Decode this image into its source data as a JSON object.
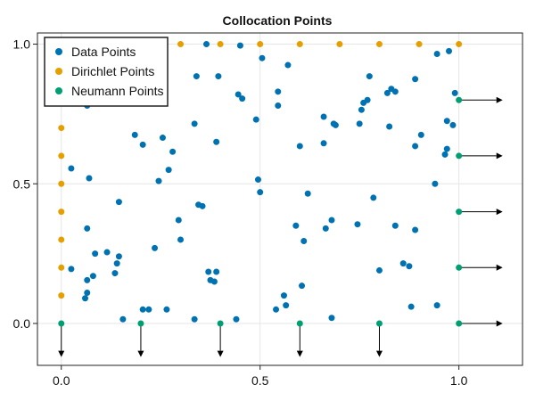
{
  "chart_data": {
    "type": "scatter",
    "title": "Collocation Points",
    "xlabel": "",
    "ylabel": "",
    "xlim": [
      -0.06,
      1.16
    ],
    "ylim": [
      -0.15,
      1.04
    ],
    "xticks": [
      0.0,
      0.5,
      1.0
    ],
    "xtick_labels": [
      "0.0",
      "0.5",
      "1.0"
    ],
    "yticks": [
      0.0,
      0.5,
      1.0
    ],
    "ytick_labels": [
      "0.0",
      "0.5",
      "1.0"
    ],
    "grid": true,
    "legend_position": "top-left",
    "series": [
      {
        "name": "Data Points",
        "color": "#0072b2",
        "points": [
          [
            0.06,
            0.09
          ],
          [
            0.065,
            0.11
          ],
          [
            0.065,
            0.155
          ],
          [
            0.065,
            0.34
          ],
          [
            0.07,
            0.52
          ],
          [
            0.025,
            0.555
          ],
          [
            0.025,
            0.195
          ],
          [
            0.08,
            0.17
          ],
          [
            0.085,
            0.25
          ],
          [
            0.065,
            0.78
          ],
          [
            0.115,
            0.255
          ],
          [
            0.135,
            0.18
          ],
          [
            0.14,
            0.215
          ],
          [
            0.145,
            0.24
          ],
          [
            0.145,
            0.435
          ],
          [
            0.155,
            0.015
          ],
          [
            0.185,
            0.675
          ],
          [
            0.205,
            0.64
          ],
          [
            0.205,
            0.05
          ],
          [
            0.22,
            0.05
          ],
          [
            0.235,
            0.27
          ],
          [
            0.245,
            0.51
          ],
          [
            0.255,
            0.665
          ],
          [
            0.265,
            0.05
          ],
          [
            0.27,
            0.55
          ],
          [
            0.28,
            0.615
          ],
          [
            0.295,
            0.37
          ],
          [
            0.3,
            0.3
          ],
          [
            0.335,
            0.015
          ],
          [
            0.335,
            0.715
          ],
          [
            0.34,
            0.885
          ],
          [
            0.345,
            0.425
          ],
          [
            0.355,
            0.42
          ],
          [
            0.365,
            1.0
          ],
          [
            0.37,
            0.185
          ],
          [
            0.375,
            0.155
          ],
          [
            0.385,
            0.15
          ],
          [
            0.39,
            0.185
          ],
          [
            0.39,
            0.65
          ],
          [
            0.395,
            0.885
          ],
          [
            0.44,
            0.015
          ],
          [
            0.445,
            0.82
          ],
          [
            0.45,
            0.995
          ],
          [
            0.455,
            0.805
          ],
          [
            0.49,
            0.73
          ],
          [
            0.495,
            0.515
          ],
          [
            0.5,
            0.47
          ],
          [
            0.505,
            0.95
          ],
          [
            0.54,
            0.05
          ],
          [
            0.545,
            0.83
          ],
          [
            0.545,
            0.78
          ],
          [
            0.56,
            0.1
          ],
          [
            0.565,
            0.065
          ],
          [
            0.57,
            0.925
          ],
          [
            0.59,
            0.35
          ],
          [
            0.6,
            0.635
          ],
          [
            0.605,
            0.135
          ],
          [
            0.61,
            0.295
          ],
          [
            0.62,
            0.465
          ],
          [
            0.66,
            0.74
          ],
          [
            0.66,
            0.645
          ],
          [
            0.665,
            0.34
          ],
          [
            0.68,
            0.02
          ],
          [
            0.68,
            0.37
          ],
          [
            0.685,
            0.715
          ],
          [
            0.69,
            0.71
          ],
          [
            0.745,
            0.355
          ],
          [
            0.75,
            0.715
          ],
          [
            0.755,
            0.765
          ],
          [
            0.76,
            0.79
          ],
          [
            0.77,
            0.8
          ],
          [
            0.775,
            0.885
          ],
          [
            0.785,
            0.45
          ],
          [
            0.8,
            0.19
          ],
          [
            0.82,
            0.825
          ],
          [
            0.825,
            0.705
          ],
          [
            0.83,
            0.84
          ],
          [
            0.84,
            0.83
          ],
          [
            0.84,
            0.35
          ],
          [
            0.86,
            0.215
          ],
          [
            0.875,
            0.205
          ],
          [
            0.88,
            0.06
          ],
          [
            0.89,
            0.335
          ],
          [
            0.89,
            0.875
          ],
          [
            0.89,
            0.635
          ],
          [
            0.905,
            0.675
          ],
          [
            0.94,
            0.5
          ],
          [
            0.945,
            0.065
          ],
          [
            0.945,
            0.965
          ],
          [
            0.965,
            0.605
          ],
          [
            0.97,
            0.725
          ],
          [
            0.97,
            0.625
          ],
          [
            0.975,
            0.975
          ],
          [
            0.985,
            0.71
          ],
          [
            0.99,
            0.825
          ]
        ]
      },
      {
        "name": "Dirichlet Points",
        "color": "#e69f00",
        "points": [
          [
            0.0,
            0.1
          ],
          [
            0.0,
            0.2
          ],
          [
            0.0,
            0.3
          ],
          [
            0.0,
            0.4
          ],
          [
            0.0,
            0.5
          ],
          [
            0.0,
            0.6
          ],
          [
            0.0,
            0.7
          ],
          [
            0.3,
            1.0
          ],
          [
            0.4,
            1.0
          ],
          [
            0.5,
            1.0
          ],
          [
            0.6,
            1.0
          ],
          [
            0.7,
            1.0
          ],
          [
            0.8,
            1.0
          ],
          [
            0.9,
            1.0
          ],
          [
            1.0,
            1.0
          ]
        ]
      },
      {
        "name": "Neumann Points",
        "color": "#009e73",
        "points": [
          [
            0.0,
            0.0
          ],
          [
            0.2,
            0.0
          ],
          [
            0.4,
            0.0
          ],
          [
            0.6,
            0.0
          ],
          [
            0.8,
            0.0
          ],
          [
            1.0,
            0.0
          ],
          [
            1.0,
            0.2
          ],
          [
            1.0,
            0.4
          ],
          [
            1.0,
            0.6
          ],
          [
            1.0,
            0.8
          ]
        ]
      }
    ],
    "arrows": [
      {
        "from": [
          0.0,
          0.0
        ],
        "to": [
          0.0,
          -0.12
        ]
      },
      {
        "from": [
          0.2,
          0.0
        ],
        "to": [
          0.2,
          -0.12
        ]
      },
      {
        "from": [
          0.4,
          0.0
        ],
        "to": [
          0.4,
          -0.12
        ]
      },
      {
        "from": [
          0.6,
          0.0
        ],
        "to": [
          0.6,
          -0.12
        ]
      },
      {
        "from": [
          0.8,
          0.0
        ],
        "to": [
          0.8,
          -0.12
        ]
      },
      {
        "from": [
          1.0,
          0.0
        ],
        "to": [
          1.11,
          0.0
        ]
      },
      {
        "from": [
          1.0,
          0.2
        ],
        "to": [
          1.11,
          0.2
        ]
      },
      {
        "from": [
          1.0,
          0.4
        ],
        "to": [
          1.11,
          0.4
        ]
      },
      {
        "from": [
          1.0,
          0.6
        ],
        "to": [
          1.11,
          0.6
        ]
      },
      {
        "from": [
          1.0,
          0.8
        ],
        "to": [
          1.11,
          0.8
        ]
      }
    ]
  }
}
